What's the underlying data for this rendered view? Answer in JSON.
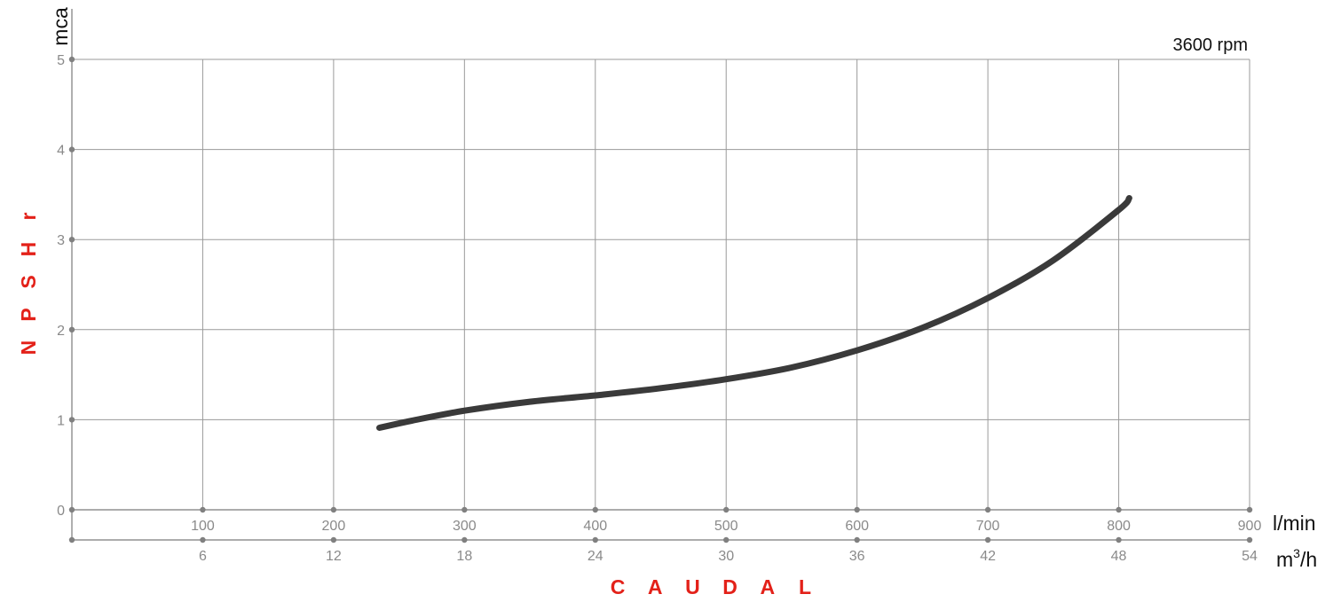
{
  "chart_data": {
    "type": "line",
    "annotation": "3600 rpm",
    "ylabel": "NPSHr",
    "yunit": "mca",
    "xlabel": "CAUDAL",
    "xunit_primary": "l/min",
    "xunit_secondary_base": "m",
    "xunit_secondary_sup": "3",
    "xunit_secondary_tail": "/h",
    "xlim": [
      0,
      900
    ],
    "ylim": [
      0,
      5
    ],
    "x_ticks_primary": [
      100,
      200,
      300,
      400,
      500,
      600,
      700,
      800,
      900
    ],
    "x_ticks_secondary": [
      6,
      12,
      18,
      24,
      30,
      36,
      42,
      48,
      54
    ],
    "y_ticks": [
      0,
      1,
      2,
      3,
      4,
      5
    ],
    "grid": true,
    "series": [
      {
        "color": "#3a3a3a",
        "x": [
          235,
          260,
          300,
          350,
          400,
          450,
          500,
          550,
          600,
          650,
          700,
          750,
          800,
          808
        ],
        "y": [
          0.91,
          0.99,
          1.1,
          1.2,
          1.27,
          1.35,
          1.45,
          1.58,
          1.77,
          2.02,
          2.35,
          2.77,
          3.33,
          3.46
        ]
      }
    ]
  }
}
